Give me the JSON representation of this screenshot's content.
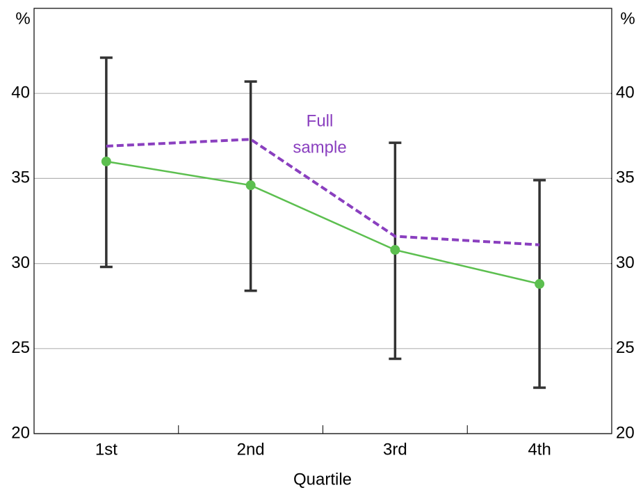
{
  "chart_data": {
    "type": "line",
    "x_label": "Quartile",
    "y_unit": "%",
    "y2_unit": "%",
    "categories": [
      "1st",
      "2nd",
      "3rd",
      "4th"
    ],
    "series": [
      {
        "color": "#5cbf4f",
        "style": "solid",
        "markers": true,
        "values": [
          36.0,
          34.6,
          30.8,
          28.8
        ],
        "lower": [
          29.8,
          28.4,
          24.4,
          22.7
        ],
        "upper": [
          42.1,
          40.7,
          37.1,
          34.9
        ],
        "error_color": "#333333"
      },
      {
        "color": "#8a3fbf",
        "style": "dashed",
        "markers": false,
        "label": [
          "Full",
          "sample"
        ],
        "values": [
          36.9,
          37.3,
          31.6,
          31.1
        ]
      }
    ],
    "ylim": [
      20,
      45
    ],
    "yticks": [
      20,
      25,
      30,
      35,
      40
    ],
    "y2lim": [
      20,
      45
    ],
    "y2ticks": [
      20,
      25,
      30,
      35,
      40
    ],
    "grid": true
  }
}
